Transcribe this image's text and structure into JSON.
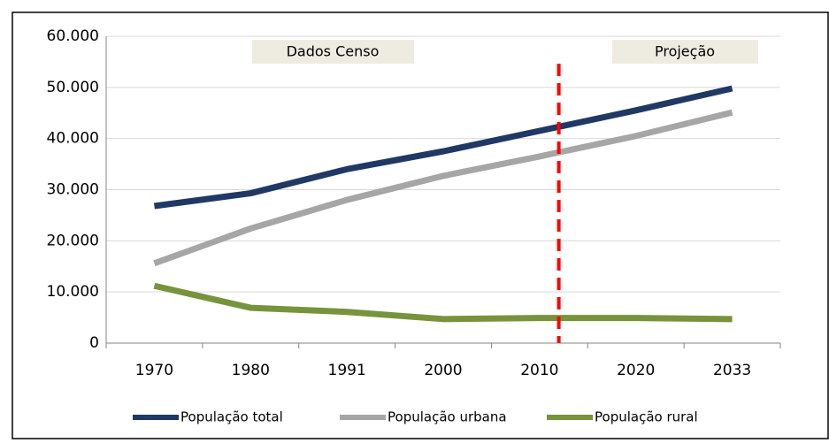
{
  "chart_data": {
    "type": "line",
    "categories": [
      "1970",
      "1980",
      "1991",
      "2000",
      "2010",
      "2020",
      "2033"
    ],
    "series": [
      {
        "name": "População total",
        "color": "#203864",
        "values": [
          26800,
          29300,
          34000,
          37500,
          41500,
          45500,
          49800
        ]
      },
      {
        "name": "População urbana",
        "color": "#a6a6a6",
        "values": [
          15600,
          22400,
          28000,
          32700,
          36500,
          40500,
          45100
        ]
      },
      {
        "name": "População rural",
        "color": "#77933c",
        "values": [
          11200,
          6900,
          6100,
          4700,
          4900,
          4900,
          4700
        ]
      }
    ],
    "annotations": [
      "Dados Censo",
      "Projeção"
    ],
    "ylim": [
      0,
      60000
    ],
    "yticks": [
      0,
      {
        "value": 10000,
        "label": "10.000"
      },
      {
        "value": 20000,
        "label": "20.000"
      },
      {
        "value": 30000,
        "label": "30.000"
      },
      {
        "value": 40000,
        "label": "40.000"
      },
      {
        "value": 50000,
        "label": "50.000"
      },
      {
        "value": 60000,
        "label": "60.000"
      }
    ],
    "grid": true,
    "legend": "bottom"
  }
}
